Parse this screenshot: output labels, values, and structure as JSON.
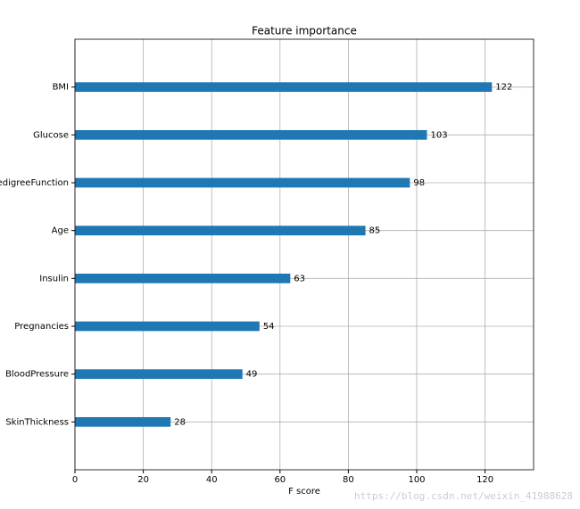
{
  "chart_data": {
    "type": "barh",
    "title": "Feature importance",
    "xlabel": "F score",
    "categories": [
      "BMI",
      "Glucose",
      "DiabetesPedigreeFunction",
      "Age",
      "Insulin",
      "Pregnancies",
      "BloodPressure",
      "SkinThickness"
    ],
    "values": [
      122,
      103,
      98,
      85,
      63,
      54,
      49,
      28
    ],
    "color": "#1f77b4",
    "xlim": [
      0,
      134.2
    ],
    "xticks": [
      0,
      20,
      40,
      60,
      80,
      100,
      120
    ],
    "grid": true,
    "watermark": "https://blog.csdn.net/weixin_41988628"
  }
}
